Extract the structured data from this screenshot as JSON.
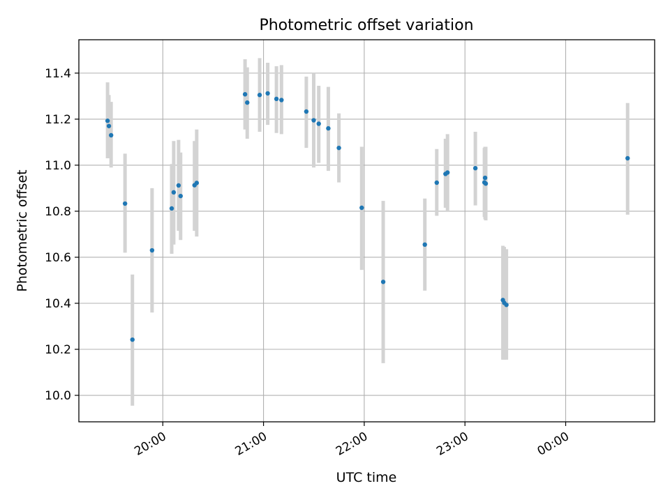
{
  "chart_data": {
    "type": "scatter",
    "title": "Photometric offset variation",
    "xlabel": "UTC time",
    "ylabel": "Photometric offset",
    "xlim": [
      "19:10",
      "00:53"
    ],
    "ylim": [
      9.885,
      11.545
    ],
    "grid": true,
    "x_scale": "time",
    "x_ticks": [
      "20:00",
      "21:00",
      "22:00",
      "23:00",
      "00:00"
    ],
    "y_ticks": [
      10.0,
      10.2,
      10.4,
      10.6,
      10.8,
      11.0,
      11.2,
      11.4
    ],
    "y_tick_labels": [
      "10.0",
      "10.2",
      "10.4",
      "10.6",
      "10.8",
      "11.0",
      "11.2",
      "11.4"
    ],
    "colors": {
      "point": "#1f77b4",
      "errorbar": "#d3d3d3",
      "grid": "#b0b0b0",
      "axes": "#000000"
    },
    "points": [
      {
        "x": "19:27.1",
        "y": 11.193,
        "err_low": 11.03,
        "err_high": 11.36
      },
      {
        "x": "19:27.9",
        "y": 11.17,
        "err_low": 11.03,
        "err_high": 11.305
      },
      {
        "x": "19:29.2",
        "y": 11.13,
        "err_low": 10.99,
        "err_high": 11.275
      },
      {
        "x": "19:37.5",
        "y": 10.833,
        "err_low": 10.62,
        "err_high": 11.05
      },
      {
        "x": "19:41.9",
        "y": 10.242,
        "err_low": 9.955,
        "err_high": 10.525
      },
      {
        "x": "19:53.6",
        "y": 10.63,
        "err_low": 10.36,
        "err_high": 10.9
      },
      {
        "x": "20:05.3",
        "y": 10.812,
        "err_low": 10.615,
        "err_high": 11.005
      },
      {
        "x": "20:06.5",
        "y": 10.882,
        "err_low": 10.655,
        "err_high": 11.105
      },
      {
        "x": "20:09.4",
        "y": 10.912,
        "err_low": 10.715,
        "err_high": 11.11
      },
      {
        "x": "20:10.6",
        "y": 10.866,
        "err_low": 10.675,
        "err_high": 11.055
      },
      {
        "x": "20:18.9",
        "y": 10.913,
        "err_low": 10.715,
        "err_high": 11.105
      },
      {
        "x": "20:20.2",
        "y": 10.923,
        "err_low": 10.69,
        "err_high": 11.155
      },
      {
        "x": "20:49.0",
        "y": 11.308,
        "err_low": 11.155,
        "err_high": 11.46
      },
      {
        "x": "20:50.3",
        "y": 11.272,
        "err_low": 11.115,
        "err_high": 11.425
      },
      {
        "x": "20:57.7",
        "y": 11.305,
        "err_low": 11.145,
        "err_high": 11.465
      },
      {
        "x": "21:02.5",
        "y": 11.312,
        "err_low": 11.175,
        "err_high": 11.445
      },
      {
        "x": "21:07.7",
        "y": 11.288,
        "err_low": 11.14,
        "err_high": 11.43
      },
      {
        "x": "21:10.7",
        "y": 11.283,
        "err_low": 11.135,
        "err_high": 11.435
      },
      {
        "x": "21:25.5",
        "y": 11.233,
        "err_low": 11.075,
        "err_high": 11.385
      },
      {
        "x": "21:29.9",
        "y": 11.195,
        "err_low": 10.99,
        "err_high": 11.4
      },
      {
        "x": "21:32.9",
        "y": 11.18,
        "err_low": 11.01,
        "err_high": 11.345
      },
      {
        "x": "21:38.6",
        "y": 11.16,
        "err_low": 10.975,
        "err_high": 11.34
      },
      {
        "x": "21:44.9",
        "y": 11.075,
        "err_low": 10.925,
        "err_high": 11.225
      },
      {
        "x": "21:58.5",
        "y": 10.815,
        "err_low": 10.545,
        "err_high": 11.08
      },
      {
        "x": "22:11.3",
        "y": 10.493,
        "err_low": 10.14,
        "err_high": 10.845
      },
      {
        "x": "22:36.1",
        "y": 10.655,
        "err_low": 10.455,
        "err_high": 10.855
      },
      {
        "x": "22:43.2",
        "y": 10.924,
        "err_low": 10.78,
        "err_high": 11.07
      },
      {
        "x": "22:48.4",
        "y": 10.962,
        "err_low": 10.815,
        "err_high": 11.115
      },
      {
        "x": "22:49.6",
        "y": 10.968,
        "err_low": 10.8,
        "err_high": 11.135
      },
      {
        "x": "23:06.2",
        "y": 10.987,
        "err_low": 10.825,
        "err_high": 11.145
      },
      {
        "x": "23:11.6",
        "y": 10.925,
        "err_low": 10.775,
        "err_high": 11.075
      },
      {
        "x": "23:12.0",
        "y": 10.945,
        "err_low": 10.765,
        "err_high": 11.08
      },
      {
        "x": "23:12.4",
        "y": 10.92,
        "err_low": 10.76,
        "err_high": 11.08
      },
      {
        "x": "23:22.6",
        "y": 10.414,
        "err_low": 10.155,
        "err_high": 10.65
      },
      {
        "x": "23:23.4",
        "y": 10.402,
        "err_low": 10.155,
        "err_high": 10.645
      },
      {
        "x": "23:24.7",
        "y": 10.393,
        "err_low": 10.155,
        "err_high": 10.635
      },
      {
        "x": "00:36.9",
        "y": 11.03,
        "err_low": 10.785,
        "err_high": 11.27
      }
    ]
  }
}
